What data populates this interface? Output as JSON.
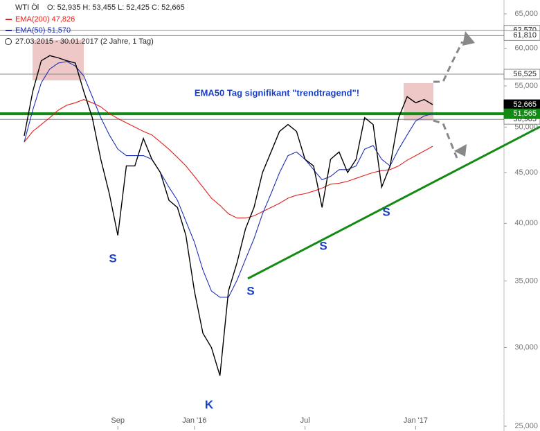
{
  "chart_data": {
    "type": "line",
    "header": {
      "symbol": "WTI Öl",
      "ohlc": "O: 52,935  H: 53,455  L: 52,425  C: 52,665",
      "ema200": "EMA(200)  47,826",
      "ema50": "EMA(50)  51,570",
      "range": "27.03.2015 - 30.01.2017  (2 Jahre, 1 Tag)"
    },
    "annotation": "EMA50 Tag signifikant \"trendtragend\"!",
    "markers": [
      "S",
      "S",
      "S",
      "S",
      "K"
    ],
    "log_scale": true,
    "categories": [
      null,
      null,
      null,
      null,
      null,
      null,
      null,
      null,
      null,
      null,
      null,
      "Sep",
      null,
      null,
      null,
      null,
      null,
      null,
      null,
      null,
      "Jan '16",
      null,
      null,
      null,
      null,
      null,
      null,
      null,
      null,
      null,
      null,
      null,
      null,
      "Jul",
      null,
      null,
      null,
      null,
      null,
      null,
      null,
      null,
      null,
      null,
      null,
      null,
      "Jan '17",
      null,
      null
    ],
    "series": [
      {
        "name": "WTI Öl",
        "color": "#000000",
        "values": [
          49000,
          54300,
          58300,
          59000,
          58700,
          58300,
          58000,
          54300,
          51100,
          46400,
          42850,
          38900,
          45700,
          45700,
          48700,
          46400,
          45000,
          42200,
          41500,
          38900,
          34200,
          31000,
          30000,
          28100,
          34200,
          36500,
          39500,
          41500,
          45000,
          47200,
          49500,
          50300,
          49500,
          46400,
          45700,
          41500,
          46400,
          47200,
          45000,
          46400,
          51100,
          50300,
          43500,
          45700,
          51100,
          53650,
          52900,
          53300,
          52665
        ]
      },
      {
        "name": "EMA(200)",
        "color": "#e0201a",
        "values": [
          48300,
          49500,
          50300,
          51100,
          52000,
          52600,
          52900,
          53300,
          52900,
          52400,
          51600,
          51000,
          50500,
          50000,
          49500,
          49100,
          48300,
          47500,
          46600,
          45700,
          44600,
          43500,
          42400,
          41700,
          40900,
          40500,
          40500,
          40700,
          41100,
          41500,
          41900,
          42400,
          42700,
          42850,
          43100,
          43400,
          43800,
          43900,
          44100,
          44400,
          44700,
          45000,
          45200,
          45300,
          45700,
          46300,
          46800,
          47300,
          47826
        ]
      },
      {
        "name": "EMA(50)",
        "color": "#1c2fb8",
        "values": [
          48300,
          52000,
          55400,
          57200,
          58000,
          58200,
          57600,
          56300,
          53650,
          51100,
          49100,
          47500,
          46800,
          46800,
          46800,
          46400,
          45000,
          43500,
          42200,
          40200,
          38300,
          35900,
          34200,
          33700,
          33700,
          35050,
          36800,
          38600,
          40900,
          42850,
          45000,
          46800,
          47200,
          46400,
          45300,
          44250,
          44600,
          45300,
          45300,
          45700,
          47500,
          47900,
          46400,
          45700,
          47500,
          49100,
          50700,
          51300,
          51570
        ]
      }
    ],
    "levels": [
      {
        "value": 62570,
        "label": "62,570",
        "color": "#888888"
      },
      {
        "value": 61810,
        "label": "61,810",
        "color": "#888888"
      },
      {
        "value": 56525,
        "label": "56,525",
        "color": "#888888"
      },
      {
        "value": 50905,
        "label": "50,905",
        "color": "#888888"
      },
      {
        "value": 52665,
        "label": "52,665",
        "color": "#000000"
      },
      {
        "value": 51565,
        "label": "51,565",
        "color": "#138a13"
      }
    ],
    "ylim": [
      25000,
      65000
    ],
    "yticks": [
      {
        "value": 25000,
        "label": "25,000"
      },
      {
        "value": 30000,
        "label": "30,000"
      },
      {
        "value": 35000,
        "label": "35,000"
      },
      {
        "value": 40000,
        "label": "40,000"
      },
      {
        "value": 45000,
        "label": "45,000"
      },
      {
        "value": 50000,
        "label": "50,000"
      },
      {
        "value": 55000,
        "label": "55,000"
      },
      {
        "value": 60000,
        "label": "60,000"
      },
      {
        "value": 65000,
        "label": "65,000"
      }
    ]
  }
}
